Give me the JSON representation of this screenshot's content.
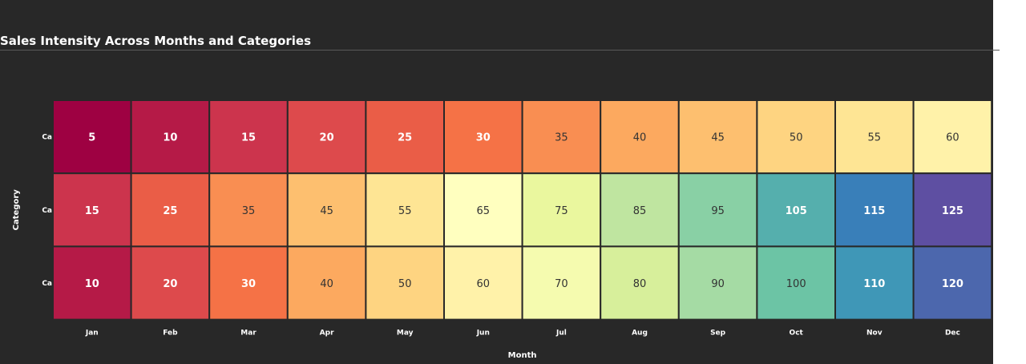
{
  "chart_data": {
    "type": "heatmap",
    "title": "Sales Intensity Across Months and Categories",
    "xlabel": "Month",
    "ylabel": "Category",
    "x_categories": [
      "Jan",
      "Feb",
      "Mar",
      "Apr",
      "May",
      "Jun",
      "Jul",
      "Aug",
      "Sep",
      "Oct",
      "Nov",
      "Dec"
    ],
    "y_categories": [
      "Ca",
      "Ca",
      "Ca"
    ],
    "values": [
      [
        5,
        10,
        15,
        20,
        25,
        30,
        35,
        40,
        45,
        50,
        55,
        60
      ],
      [
        15,
        25,
        35,
        45,
        55,
        65,
        75,
        85,
        95,
        105,
        115,
        125
      ],
      [
        10,
        20,
        30,
        40,
        50,
        60,
        70,
        80,
        90,
        100,
        110,
        120
      ]
    ],
    "colormap": "Spectral",
    "value_range": [
      5,
      125
    ],
    "background": "#282828"
  }
}
